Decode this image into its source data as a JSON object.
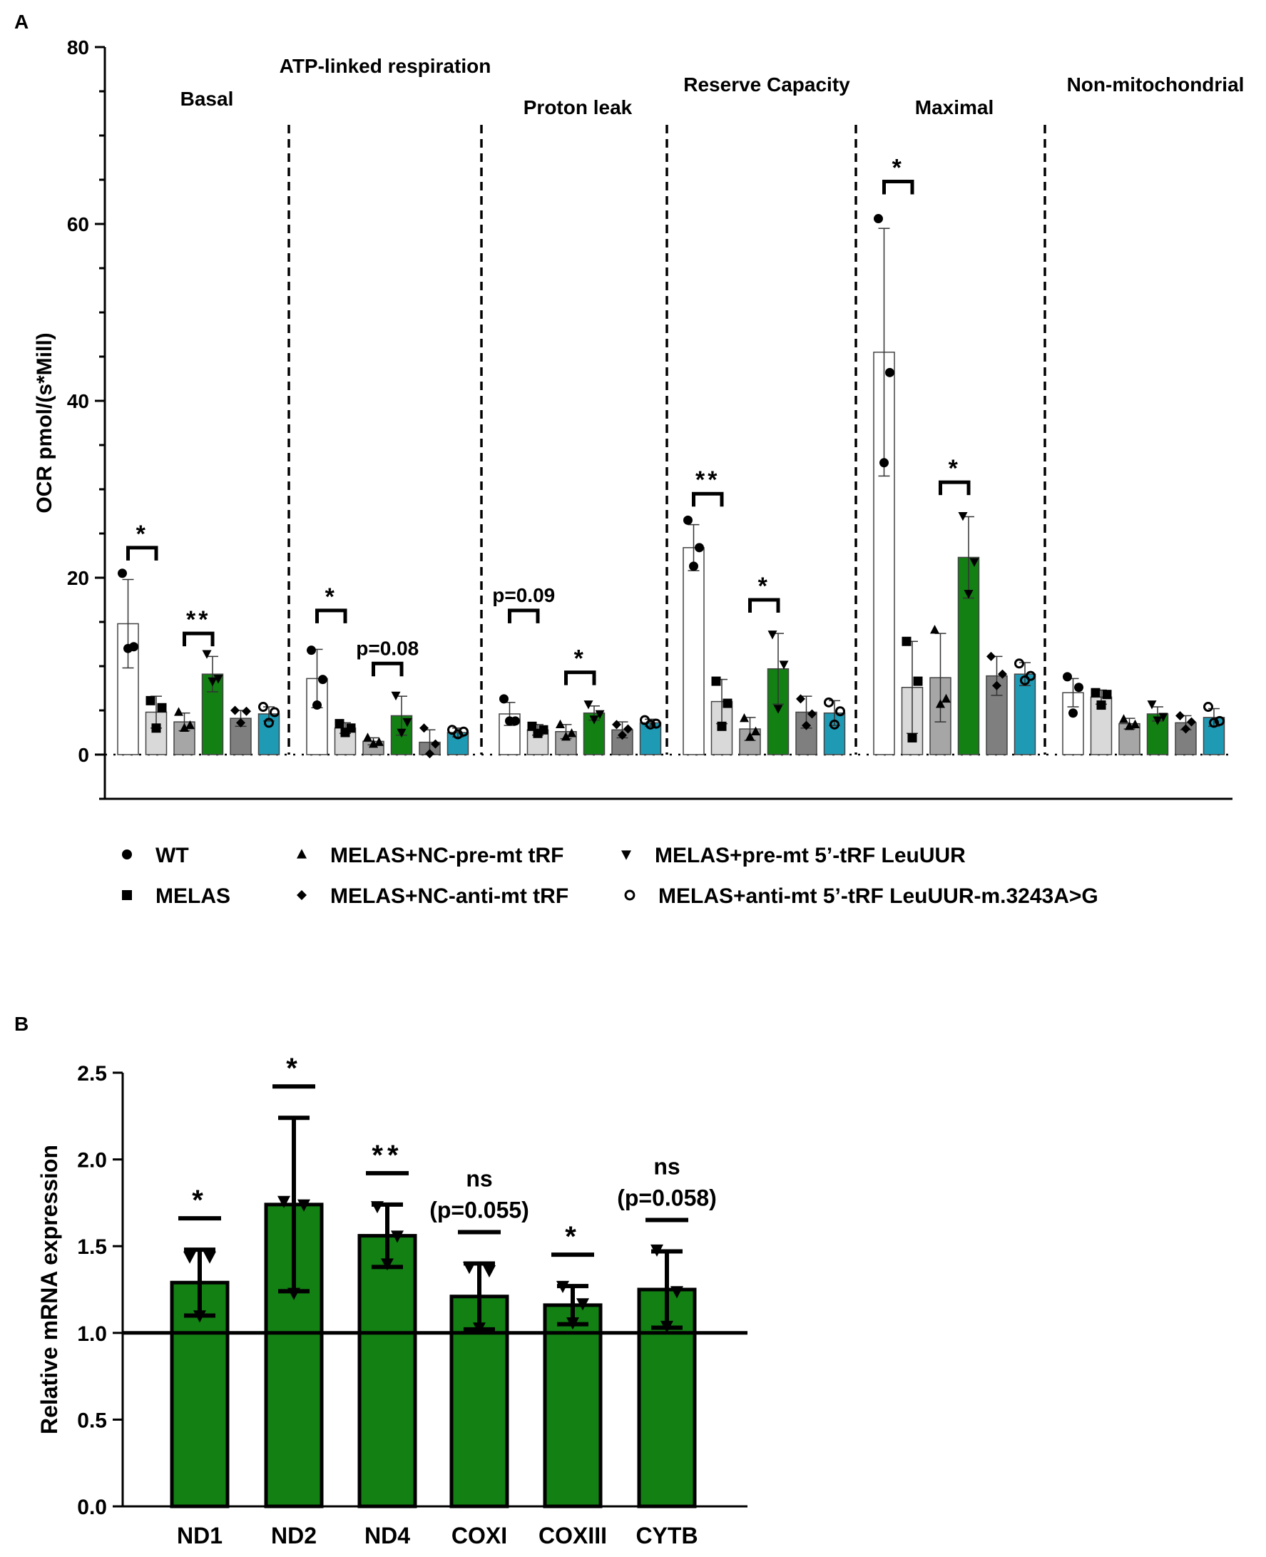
{
  "colors": {
    "wt": "#ffffff",
    "melas": "#d9d9d9",
    "nc_pre": "#a6a6a6",
    "pre": "#138014",
    "nc_anti": "#7f7f7f",
    "anti": "#1e9ab5",
    "axis": "#000000",
    "green": "#138014"
  },
  "chart_data": [
    {
      "panel": "A",
      "type": "bar",
      "ylabel": "OCR pmol/(s*Mill)",
      "xlabel": "",
      "ylim": [
        -5,
        80
      ],
      "yticks": [
        0,
        20,
        40,
        60,
        80
      ],
      "groups": [
        "Basal",
        "ATP-linked respiration",
        "Proton leak",
        "Reserve Capacity",
        "Maximal",
        "Non-mitochondrial"
      ],
      "legend": [
        {
          "marker": "circle",
          "label": "WT"
        },
        {
          "marker": "square",
          "label": "MELAS"
        },
        {
          "marker": "triangle",
          "label": "MELAS+NC-pre-mt tRF"
        },
        {
          "marker": "diamond",
          "label": "MELAS+NC-anti-mt tRF"
        },
        {
          "marker": "triangle-down",
          "label": "MELAS+pre-mt 5’-tRF LeuUUR"
        },
        {
          "marker": "open-circle",
          "label": "MELAS+anti-mt 5’-tRF LeuUUR-m.3243A>G"
        }
      ],
      "series": [
        {
          "name": "WT",
          "values": [
            14.8,
            8.6,
            4.6,
            23.4,
            45.5,
            7.0
          ],
          "err": [
            5.0,
            3.3,
            1.3,
            2.6,
            14.0,
            1.6
          ],
          "points": [
            [
              20.5,
              12.2,
              12.0
            ],
            [
              11.8,
              8.5,
              5.6
            ],
            [
              6.3,
              3.8,
              3.8
            ],
            [
              26.5,
              23.4,
              21.3
            ],
            [
              60.6,
              43.2,
              33.0
            ],
            [
              8.8,
              7.6,
              4.7
            ]
          ]
        },
        {
          "name": "MELAS",
          "values": [
            4.8,
            3.0,
            2.8,
            6.0,
            7.6,
            6.5
          ],
          "err": [
            1.8,
            0.6,
            0.6,
            2.5,
            5.2,
            0.8
          ],
          "points": [
            [
              6.1,
              5.3,
              3.0
            ],
            [
              3.5,
              3.0,
              2.5
            ],
            [
              3.2,
              2.8,
              2.4
            ],
            [
              8.3,
              5.8,
              3.2
            ],
            [
              12.8,
              8.3,
              1.9
            ],
            [
              7.0,
              6.8,
              5.6
            ]
          ]
        },
        {
          "name": "MELAS+NC-pre-mt tRF",
          "values": [
            3.7,
            1.5,
            2.6,
            2.9,
            8.7,
            3.5
          ],
          "err": [
            1.0,
            0.4,
            0.8,
            1.3,
            5.0,
            0.6
          ],
          "points": [
            [
              4.8,
              3.3,
              3.0
            ],
            [
              1.9,
              1.4,
              1.2
            ],
            [
              3.4,
              2.4,
              2.0
            ],
            [
              4.1,
              2.6,
              2.0
            ],
            [
              14.1,
              6.3,
              5.7
            ],
            [
              4.0,
              3.4,
              3.2
            ]
          ]
        },
        {
          "name": "MELAS+pre-mt 5’-tRF LeuUUR",
          "values": [
            9.1,
            4.4,
            4.7,
            9.7,
            22.3,
            4.6
          ],
          "err": [
            2.0,
            2.2,
            0.8,
            4.0,
            4.6,
            0.8
          ],
          "points": [
            [
              11.4,
              8.6,
              8.3
            ],
            [
              6.7,
              3.7,
              2.5
            ],
            [
              5.7,
              4.6,
              4.0
            ],
            [
              13.6,
              10.2,
              5.2
            ],
            [
              27.0,
              21.8,
              18.2
            ],
            [
              5.7,
              4.3,
              3.9
            ]
          ]
        },
        {
          "name": "MELAS+NC-anti-mt tRF",
          "values": [
            4.1,
            1.4,
            2.8,
            4.8,
            8.9,
            3.6
          ],
          "err": [
            0.9,
            1.4,
            0.9,
            1.8,
            2.2,
            0.8
          ],
          "points": [
            [
              5.0,
              4.9,
              3.6
            ],
            [
              3.0,
              1.2,
              0.1
            ],
            [
              3.4,
              2.9,
              2.2
            ],
            [
              6.3,
              4.6,
              3.3
            ],
            [
              11.1,
              9.1,
              7.8
            ],
            [
              4.4,
              3.7,
              2.9
            ]
          ]
        },
        {
          "name": "MELAS+anti-mt 5’-tRF LeuUUR-m.3243A>G",
          "values": [
            4.6,
            2.5,
            3.6,
            4.7,
            9.1,
            4.2
          ],
          "err": [
            0.8,
            0.5,
            0.4,
            1.4,
            1.3,
            1.0
          ],
          "points": [
            [
              5.4,
              4.8,
              3.6
            ],
            [
              2.8,
              2.6,
              2.3
            ],
            [
              3.9,
              3.5,
              3.4
            ],
            [
              5.9,
              4.9,
              3.4
            ],
            [
              10.3,
              8.9,
              8.4
            ],
            [
              5.4,
              3.8,
              3.6
            ]
          ]
        }
      ],
      "annotations": [
        {
          "text": "*",
          "group": 0,
          "from": 0,
          "to": 1,
          "y": 23.4
        },
        {
          "text": "**",
          "group": 0,
          "from": 2,
          "to": 3,
          "y": 13.7
        },
        {
          "text": "*",
          "group": 1,
          "from": 0,
          "to": 1,
          "y": 16.3
        },
        {
          "text": "p=0.08",
          "group": 1,
          "from": 2,
          "to": 3,
          "y": 10.3
        },
        {
          "text": "p=0.09",
          "group": 2,
          "from": 0,
          "to": 1,
          "y": 16.3
        },
        {
          "text": "*",
          "group": 2,
          "from": 2,
          "to": 3,
          "y": 9.3
        },
        {
          "text": "**",
          "group": 3,
          "from": 0,
          "to": 1,
          "y": 29.5
        },
        {
          "text": "*",
          "group": 3,
          "from": 2,
          "to": 3,
          "y": 17.5
        },
        {
          "text": "*",
          "group": 4,
          "from": 0,
          "to": 1,
          "y": 64.8
        },
        {
          "text": "*",
          "group": 4,
          "from": 2,
          "to": 3,
          "y": 30.8
        }
      ]
    },
    {
      "panel": "B",
      "type": "bar",
      "ylabel": "Relative mRNA expression",
      "xlabel": "",
      "ylim": [
        0,
        2.5
      ],
      "yticks": [
        "0.0",
        "0.5",
        "1.0",
        "1.5",
        "2.0",
        "2.5"
      ],
      "reference_line": 1.0,
      "categories": [
        "ND1",
        "ND2",
        "ND4",
        "COXI",
        "COXIII",
        "CYTB"
      ],
      "values": [
        1.29,
        1.74,
        1.56,
        1.21,
        1.16,
        1.25
      ],
      "err": [
        0.19,
        0.5,
        0.18,
        0.19,
        0.11,
        0.22
      ],
      "points": [
        [
          1.44,
          1.44,
          1.1
        ],
        [
          1.76,
          1.74,
          1.23
        ],
        [
          1.73,
          1.56,
          1.4
        ],
        [
          1.38,
          1.36,
          1.03
        ],
        [
          1.27,
          1.17,
          1.06
        ],
        [
          1.48,
          1.24,
          1.04
        ]
      ],
      "annotations": [
        {
          "category": 0,
          "label": "*",
          "note": ""
        },
        {
          "category": 1,
          "label": "*",
          "note": ""
        },
        {
          "category": 2,
          "label": "**",
          "note": ""
        },
        {
          "category": 3,
          "label": "ns",
          "note": "(p=0.055)"
        },
        {
          "category": 4,
          "label": "*",
          "note": ""
        },
        {
          "category": 5,
          "label": "ns",
          "note": "(p=0.058)"
        }
      ]
    }
  ],
  "panels": {
    "a_label": "A",
    "b_label": "B"
  }
}
